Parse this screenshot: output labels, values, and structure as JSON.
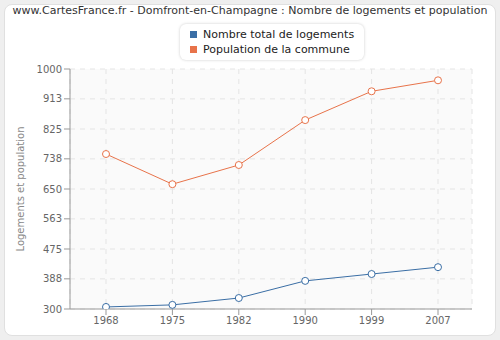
{
  "chart_data": {
    "type": "line",
    "title": "www.CartesFrance.fr - Domfront-en-Champagne : Nombre de logements et population",
    "y_label": "Logements et population",
    "categories": [
      "1968",
      "1975",
      "1982",
      "1990",
      "1999",
      "2007"
    ],
    "series": [
      {
        "name": "Nombre total de logements",
        "color": "#3a6ea5",
        "marker": "circle",
        "values": [
          306,
          312,
          332,
          382,
          402,
          422
        ]
      },
      {
        "name": "Population de la commune",
        "color": "#e8734a",
        "marker": "circle",
        "values": [
          752,
          664,
          720,
          851,
          935,
          967
        ]
      }
    ],
    "ylim": [
      300,
      1000
    ],
    "yticks": [
      300,
      388,
      475,
      563,
      650,
      738,
      825,
      913,
      1000
    ],
    "grid": true,
    "legend": "top"
  }
}
